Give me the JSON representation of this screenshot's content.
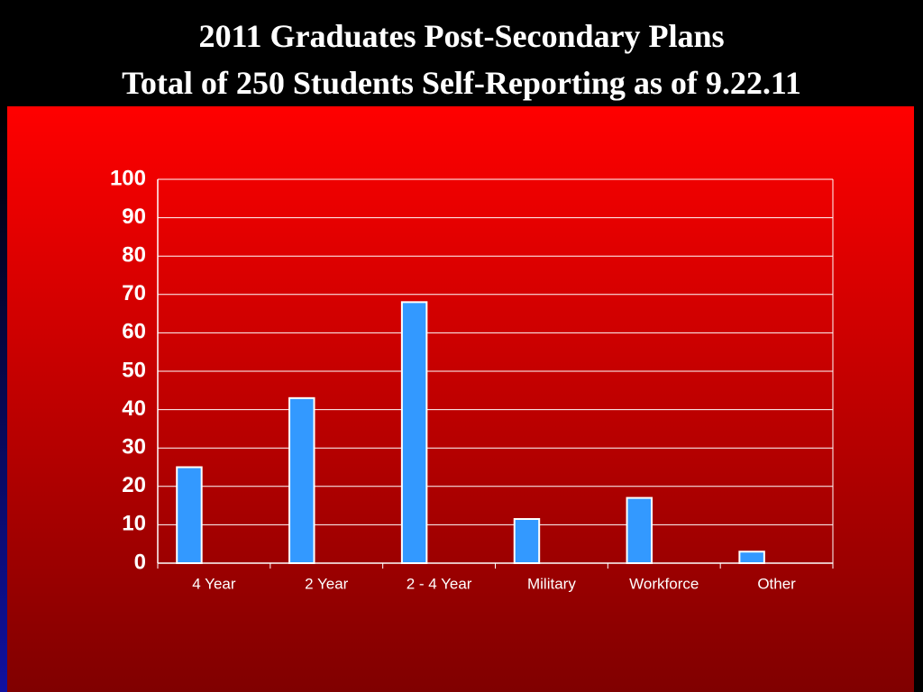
{
  "chart_data": {
    "type": "bar",
    "title": "2011 Graduates Post-Secondary Plans",
    "subtitle": "Total of 250 Students Self-Reporting as of 9.22.11",
    "categories": [
      "4 Year",
      "2 Year",
      "2 - 4 Year",
      "Military",
      "Workforce",
      "Other"
    ],
    "values": [
      25,
      43,
      68,
      11.5,
      17,
      3
    ],
    "color": "#3399ff",
    "ylim": [
      0,
      100
    ],
    "yticks": [
      0,
      10,
      20,
      30,
      40,
      50,
      60,
      70,
      80,
      90,
      100
    ],
    "grid": true
  }
}
